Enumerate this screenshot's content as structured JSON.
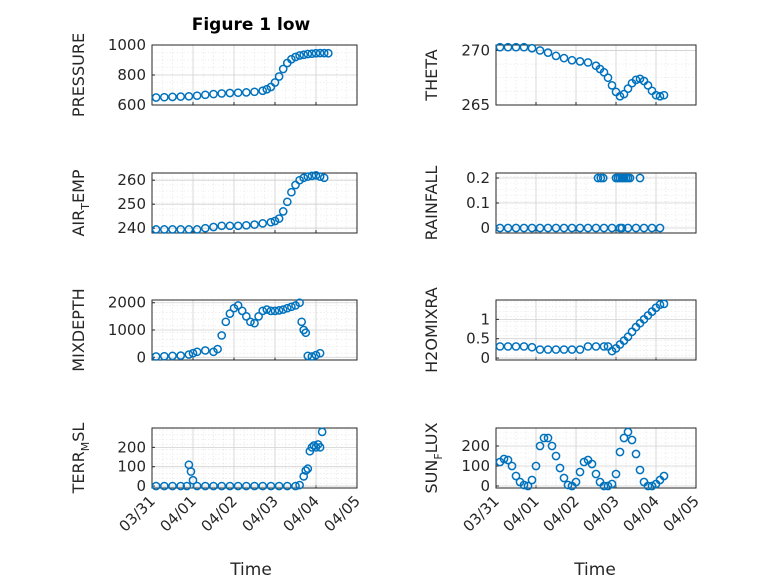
{
  "figure": {
    "title": "Figure 1 low",
    "xlabel": "Time",
    "marker_color": "#0072bd"
  },
  "chart_data": [
    {
      "type": "scatter",
      "title": "Figure 1 low",
      "ylabel": "PRESSURE",
      "xlim": [
        "03/31",
        "04/05"
      ],
      "x_ticks": [
        "03/31",
        "04/01",
        "04/02",
        "04/03",
        "04/04",
        "04/05"
      ],
      "ylim": [
        600,
        1000
      ],
      "y_ticks": [
        600,
        800,
        1000
      ],
      "grid": true,
      "x": [
        0.1,
        0.3,
        0.5,
        0.7,
        0.9,
        1.1,
        1.3,
        1.5,
        1.7,
        1.9,
        2.1,
        2.3,
        2.5,
        2.7,
        2.8,
        2.9,
        3.0,
        3.1,
        3.2,
        3.3,
        3.4,
        3.5,
        3.6,
        3.7,
        3.8,
        3.9,
        4.0,
        4.1,
        4.2,
        4.3
      ],
      "y": [
        650,
        652,
        654,
        656,
        658,
        662,
        668,
        673,
        677,
        680,
        682,
        684,
        688,
        695,
        705,
        720,
        750,
        790,
        840,
        880,
        905,
        920,
        930,
        935,
        940,
        942,
        945,
        946,
        946,
        945
      ]
    },
    {
      "type": "scatter",
      "ylabel": "THETA",
      "xlim": [
        "03/31",
        "04/05"
      ],
      "x_ticks": [
        "03/31",
        "04/01",
        "04/02",
        "04/03",
        "04/04",
        "04/05"
      ],
      "ylim": [
        265,
        270.5
      ],
      "y_ticks": [
        265,
        270
      ],
      "grid": true,
      "x": [
        0.1,
        0.3,
        0.5,
        0.7,
        0.9,
        1.1,
        1.3,
        1.5,
        1.7,
        1.9,
        2.1,
        2.3,
        2.5,
        2.6,
        2.7,
        2.8,
        2.9,
        3.0,
        3.1,
        3.2,
        3.3,
        3.4,
        3.5,
        3.6,
        3.7,
        3.8,
        3.9,
        4.0,
        4.1,
        4.2
      ],
      "y": [
        270.3,
        270.3,
        270.3,
        270.3,
        270.2,
        270.0,
        269.8,
        269.5,
        269.3,
        269.1,
        269.0,
        268.9,
        268.6,
        268.3,
        268.0,
        267.5,
        266.8,
        266.2,
        265.8,
        266.0,
        266.5,
        267.0,
        267.3,
        267.4,
        267.2,
        266.8,
        266.3,
        265.9,
        265.8,
        265.9
      ]
    },
    {
      "type": "scatter",
      "ylabel": "AIR",
      "ylabel_sub": "T",
      "ylabel_end": "EMP",
      "xlim": [
        "03/31",
        "04/05"
      ],
      "x_ticks": [
        "03/31",
        "04/01",
        "04/02",
        "04/03",
        "04/04",
        "04/05"
      ],
      "ylim": [
        238,
        263
      ],
      "y_ticks": [
        240,
        250,
        260
      ],
      "grid": true,
      "x": [
        0.1,
        0.3,
        0.5,
        0.7,
        0.9,
        1.1,
        1.3,
        1.5,
        1.7,
        1.9,
        2.1,
        2.3,
        2.5,
        2.7,
        2.9,
        3.0,
        3.1,
        3.2,
        3.3,
        3.4,
        3.5,
        3.6,
        3.7,
        3.8,
        3.9,
        4.0,
        4.1,
        4.2
      ],
      "y": [
        239.5,
        239.5,
        239.5,
        239.5,
        239.5,
        239.5,
        240.0,
        240.5,
        241.0,
        241.0,
        241.0,
        241.2,
        241.5,
        242.0,
        242.5,
        243.0,
        244.0,
        247.0,
        251.0,
        255.0,
        258.0,
        260.0,
        261.0,
        261.5,
        261.8,
        262.0,
        261.5,
        261.0
      ]
    },
    {
      "type": "scatter",
      "ylabel": "RAINFALL",
      "xlim": [
        "03/31",
        "04/05"
      ],
      "x_ticks": [
        "03/31",
        "04/01",
        "04/02",
        "04/03",
        "04/04",
        "04/05"
      ],
      "ylim": [
        -0.02,
        0.22
      ],
      "y_ticks": [
        0,
        0.1,
        0.2
      ],
      "grid": true,
      "x": [
        0.1,
        0.3,
        0.5,
        0.7,
        0.9,
        1.1,
        1.3,
        1.5,
        1.7,
        1.9,
        2.1,
        2.3,
        2.5,
        2.7,
        2.9,
        3.1,
        3.3,
        3.5,
        3.7,
        3.9,
        4.1,
        2.55,
        2.62,
        2.68,
        3.0,
        3.05,
        3.1,
        3.15,
        3.2,
        3.25,
        3.3,
        3.35,
        3.6,
        3.15
      ],
      "y": [
        0,
        0,
        0,
        0,
        0,
        0,
        0,
        0,
        0,
        0,
        0,
        0,
        0,
        0,
        0,
        0,
        0,
        0,
        0,
        0,
        0,
        0.2,
        0.2,
        0.2,
        0.2,
        0.2,
        0.2,
        0.2,
        0.2,
        0.2,
        0.2,
        0.2,
        0.2,
        0
      ]
    },
    {
      "type": "scatter",
      "ylabel": "MIXDEPTH",
      "xlim": [
        "03/31",
        "04/05"
      ],
      "x_ticks": [
        "03/31",
        "04/01",
        "04/02",
        "04/03",
        "04/04",
        "04/05"
      ],
      "ylim": [
        -100,
        2100
      ],
      "y_ticks": [
        0,
        1000,
        2000
      ],
      "grid": true,
      "x": [
        0.1,
        0.3,
        0.5,
        0.7,
        0.9,
        1.0,
        1.1,
        1.3,
        1.5,
        1.6,
        1.7,
        1.8,
        1.9,
        2.0,
        2.1,
        2.2,
        2.3,
        2.4,
        2.5,
        2.6,
        2.7,
        2.8,
        2.9,
        3.0,
        3.1,
        3.2,
        3.3,
        3.4,
        3.5,
        3.6,
        3.65,
        3.7,
        3.75,
        3.8,
        3.9,
        4.0,
        4.1
      ],
      "y": [
        30,
        40,
        50,
        60,
        100,
        150,
        200,
        250,
        200,
        300,
        800,
        1300,
        1600,
        1800,
        1900,
        1700,
        1500,
        1300,
        1250,
        1500,
        1700,
        1750,
        1700,
        1700,
        1720,
        1750,
        1800,
        1850,
        1900,
        2000,
        1300,
        1000,
        900,
        50,
        30,
        80,
        150
      ]
    },
    {
      "type": "scatter",
      "ylabel": "H2OMIXRA",
      "xlim": [
        "03/31",
        "04/05"
      ],
      "x_ticks": [
        "03/31",
        "04/01",
        "04/02",
        "04/03",
        "04/04",
        "04/05"
      ],
      "ylim": [
        -0.05,
        1.5
      ],
      "y_ticks": [
        0,
        0.5,
        1
      ],
      "grid": true,
      "x": [
        0.1,
        0.3,
        0.5,
        0.7,
        0.9,
        1.1,
        1.3,
        1.5,
        1.7,
        1.9,
        2.1,
        2.3,
        2.5,
        2.7,
        2.8,
        2.9,
        3.0,
        3.1,
        3.2,
        3.3,
        3.4,
        3.5,
        3.6,
        3.7,
        3.8,
        3.9,
        4.0,
        4.1,
        4.2
      ],
      "y": [
        0.3,
        0.3,
        0.3,
        0.3,
        0.28,
        0.22,
        0.22,
        0.22,
        0.22,
        0.22,
        0.22,
        0.3,
        0.3,
        0.3,
        0.3,
        0.18,
        0.25,
        0.35,
        0.45,
        0.55,
        0.68,
        0.8,
        0.9,
        1.0,
        1.1,
        1.2,
        1.3,
        1.38,
        1.4
      ]
    },
    {
      "type": "scatter",
      "ylabel": "TERR",
      "ylabel_sub": "M",
      "ylabel_end": "SL",
      "xlim": [
        "03/31",
        "04/05"
      ],
      "x_ticks": [
        "03/31",
        "04/01",
        "04/02",
        "04/03",
        "04/04",
        "04/05"
      ],
      "ylim": [
        -10,
        300
      ],
      "y_ticks": [
        0,
        100,
        200
      ],
      "grid": true,
      "x": [
        0.1,
        0.3,
        0.5,
        0.7,
        0.85,
        0.9,
        0.95,
        1.0,
        1.1,
        1.3,
        1.5,
        1.7,
        1.9,
        2.1,
        2.3,
        2.5,
        2.7,
        2.9,
        3.1,
        3.3,
        3.5,
        3.6,
        3.7,
        3.75,
        3.8,
        3.85,
        3.9,
        3.95,
        4.0,
        4.05,
        4.1,
        4.15
      ],
      "y": [
        0,
        0,
        0,
        0,
        0,
        110,
        75,
        30,
        0,
        0,
        0,
        0,
        0,
        0,
        0,
        0,
        0,
        0,
        0,
        0,
        0,
        5,
        50,
        80,
        90,
        180,
        200,
        210,
        200,
        215,
        200,
        280
      ]
    },
    {
      "type": "scatter",
      "ylabel": "SUN",
      "ylabel_sub": "F",
      "ylabel_end": "LUX",
      "xlim": [
        "03/31",
        "04/05"
      ],
      "x_ticks": [
        "03/31",
        "04/01",
        "04/02",
        "04/03",
        "04/04",
        "04/05"
      ],
      "ylim": [
        -10,
        290
      ],
      "y_ticks": [
        0,
        100,
        200
      ],
      "grid": true,
      "x": [
        0.1,
        0.2,
        0.3,
        0.4,
        0.5,
        0.6,
        0.7,
        0.8,
        0.9,
        1.0,
        1.1,
        1.2,
        1.3,
        1.4,
        1.5,
        1.6,
        1.7,
        1.8,
        1.9,
        2.0,
        2.1,
        2.2,
        2.3,
        2.4,
        2.5,
        2.6,
        2.7,
        2.8,
        2.9,
        3.0,
        3.1,
        3.2,
        3.3,
        3.4,
        3.5,
        3.6,
        3.7,
        3.8,
        3.9,
        4.0,
        4.1,
        4.2
      ],
      "y": [
        120,
        135,
        130,
        100,
        50,
        20,
        5,
        0,
        30,
        100,
        200,
        240,
        240,
        200,
        150,
        90,
        40,
        5,
        0,
        20,
        70,
        120,
        130,
        110,
        60,
        20,
        0,
        0,
        10,
        60,
        170,
        240,
        270,
        230,
        160,
        80,
        20,
        0,
        0,
        10,
        30,
        50
      ]
    }
  ]
}
